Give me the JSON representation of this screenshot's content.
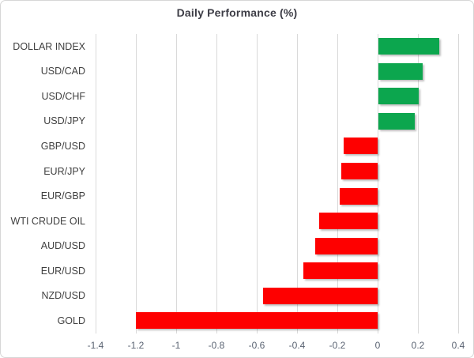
{
  "chart_data": {
    "type": "bar",
    "orientation": "horizontal",
    "title": "Daily Performance (%)",
    "categories": [
      "DOLLAR INDEX",
      "USD/CAD",
      "USD/CHF",
      "USD/JPY",
      "GBP/USD",
      "EUR/JPY",
      "EUR/GBP",
      "WTI CRUDE OIL",
      "AUD/USD",
      "EUR/USD",
      "NZD/USD",
      "GOLD"
    ],
    "values": [
      0.3,
      0.22,
      0.2,
      0.18,
      -0.17,
      -0.18,
      -0.19,
      -0.29,
      -0.31,
      -0.37,
      -0.57,
      -1.2
    ],
    "xlim": [
      -1.4,
      0.4
    ],
    "xticks": [
      -1.4,
      -1.2,
      -1,
      -0.8,
      -0.6,
      -0.4,
      -0.2,
      0,
      0.2,
      0.4
    ],
    "xtick_labels": [
      "-1.4",
      "-1.2",
      "-1",
      "-0.8",
      "-0.6",
      "-0.4",
      "-0.2",
      "0",
      "0.2",
      "0.4"
    ],
    "grid": true,
    "legend": false
  },
  "colors": {
    "positive": "#0ca64e",
    "negative": "#fe0000",
    "gridline": "#d9d9d9",
    "title_text": "#3d3d46",
    "category_text": "#3f3f3f",
    "tick_text": "#5a6372",
    "frame_border": "#d6d6d6",
    "background": "#ffffff"
  }
}
